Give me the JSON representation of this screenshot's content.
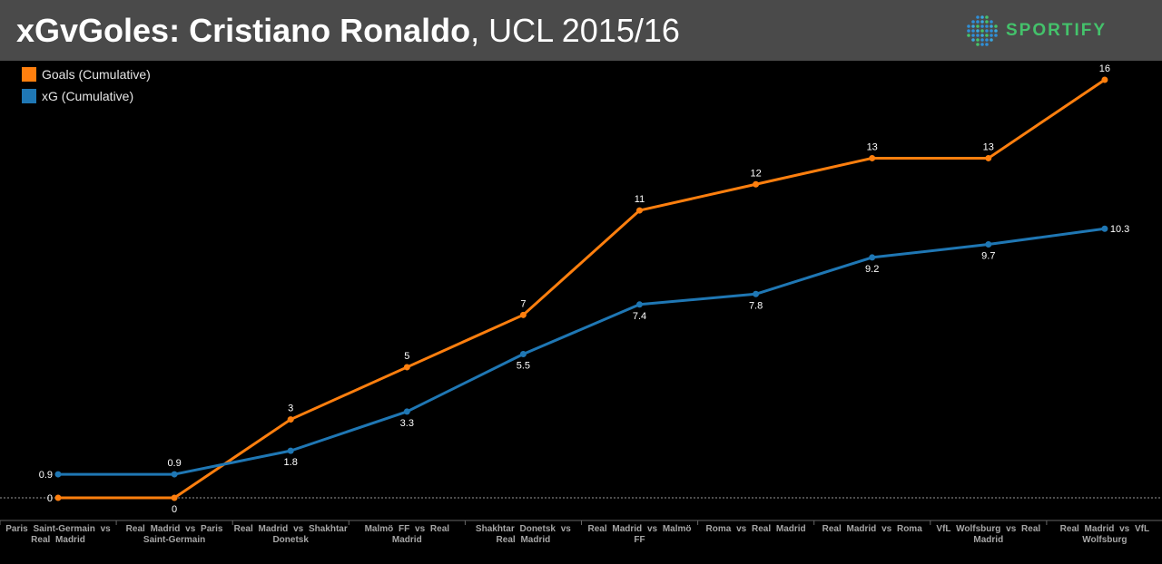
{
  "header": {
    "title_bold": "xGvGoles: Cristiano Ronaldo",
    "title_rest": ", UCL 2015/16",
    "logo_text": "SPORTIFY"
  },
  "colors": {
    "goals": "#ff7f0e",
    "xg": "#1f77b4",
    "background": "#000000",
    "header": "#4a4a4a",
    "logo": "#44c26b"
  },
  "chart_data": {
    "type": "line",
    "title": "xGvGoles: Cristiano Ronaldo, UCL 2015/16",
    "categories": [
      "Paris Saint-Germain vs Real Madrid",
      "Real Madrid vs Paris Saint-Germain",
      "Real Madrid vs Shakhtar Donetsk",
      "Malmö FF vs Real Madrid",
      "Shakhtar Donetsk vs Real Madrid",
      "Real Madrid vs Malmö FF",
      "Roma vs Real Madrid",
      "Real Madrid vs Roma",
      "VfL Wolfsburg vs Real Madrid",
      "Real Madrid vs VfL Wolfsburg"
    ],
    "series": [
      {
        "name": "Goals (Cumulative)",
        "values": [
          0,
          0,
          3,
          5,
          7,
          11,
          12,
          13,
          13,
          16
        ]
      },
      {
        "name": "xG (Cumulative)",
        "values": [
          0.9,
          0.9,
          1.8,
          3.3,
          5.5,
          7.4,
          7.8,
          9.2,
          9.7,
          10.3
        ]
      }
    ],
    "ylim": [
      0,
      17
    ],
    "legend": "top-left",
    "grid": false
  }
}
